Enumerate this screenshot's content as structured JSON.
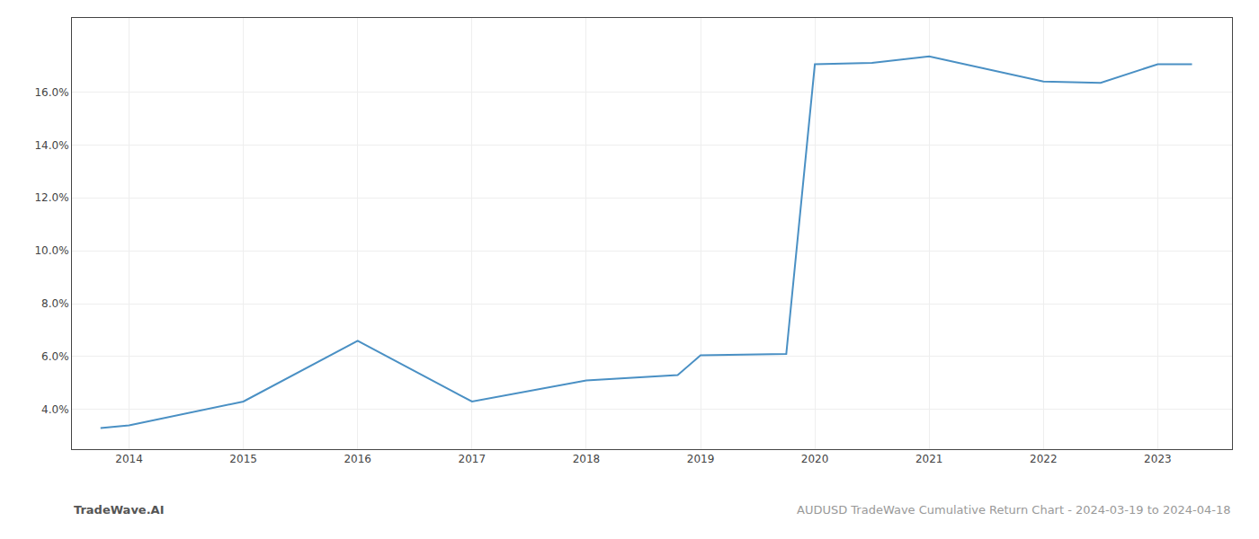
{
  "chart_data": {
    "type": "line",
    "x": [
      2013.75,
      2014,
      2015,
      2016,
      2017,
      2018,
      2018.8,
      2019,
      2019.75,
      2020,
      2020.5,
      2021,
      2022,
      2022.5,
      2023,
      2023.3
    ],
    "values": [
      3.3,
      3.4,
      4.3,
      6.6,
      4.3,
      5.1,
      5.3,
      6.05,
      6.1,
      17.05,
      17.1,
      17.35,
      16.4,
      16.35,
      17.05,
      17.05
    ],
    "color": "#4a90c4",
    "xlim": [
      2013.5,
      2023.65
    ],
    "xticks": [
      2014,
      2015,
      2016,
      2017,
      2018,
      2019,
      2020,
      2021,
      2022,
      2023
    ],
    "ylim": [
      2.5,
      18.8
    ],
    "yticks": [
      {
        "value": 4.0,
        "label": "4.0%"
      },
      {
        "value": 6.0,
        "label": "6.0%"
      },
      {
        "value": 8.0,
        "label": "8.0%"
      },
      {
        "value": 10.0,
        "label": "10.0%"
      },
      {
        "value": 12.0,
        "label": "12.0%"
      },
      {
        "value": 14.0,
        "label": "14.0%"
      },
      {
        "value": 16.0,
        "label": "16.0%"
      }
    ],
    "grid": true,
    "annotations": [
      "TradeWave.AI",
      "AUDUSD TradeWave Cumulative Return Chart - 2024-03-19 to 2024-04-18"
    ]
  }
}
